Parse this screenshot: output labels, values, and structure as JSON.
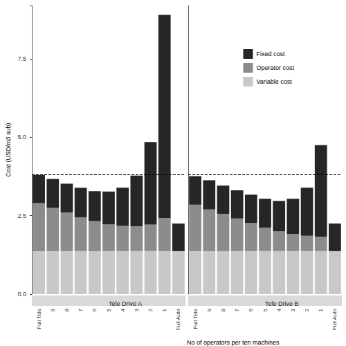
{
  "chart_data": {
    "type": "bar",
    "stacked": true,
    "y_label": "Cost (USD/m3 sub)",
    "x_label": "No of operators per ten machines",
    "categories": [
      "Full Tele",
      "9",
      "8",
      "7",
      "6",
      "5",
      "4",
      "3",
      "2",
      "1",
      "Full Auto"
    ],
    "ylim": [
      0,
      9.2
    ],
    "yticks": [
      {
        "value": 0,
        "label": "0.0"
      },
      2.5,
      {
        "value": 5,
        "label": "5.0"
      },
      7.5
    ],
    "hline": 3.82,
    "legend": "top-right",
    "panels": [
      {
        "title": "Tele Drive A",
        "series": [
          {
            "name": "Fixed cost",
            "color": "#262626",
            "values": [
              0.9,
              0.92,
              0.92,
              0.94,
              0.95,
              1.05,
              1.21,
              1.62,
              2.63,
              6.48,
              0.88
            ]
          },
          {
            "name": "Operator cost",
            "color": "#8c8c8c",
            "values": [
              1.53,
              1.38,
              1.23,
              1.08,
              0.96,
              0.85,
              0.81,
              0.79,
              0.85,
              1.05,
              0
            ]
          },
          {
            "name": "Variable cost",
            "color": "#c8c8c8",
            "values": [
              1.37,
              1.37,
              1.37,
              1.37,
              1.37,
              1.37,
              1.37,
              1.37,
              1.37,
              1.37,
              1.37
            ]
          }
        ]
      },
      {
        "title": "Tele Drive B",
        "series": [
          {
            "name": "Fixed cost",
            "color": "#262626",
            "values": [
              0.91,
              0.93,
              0.9,
              0.9,
              0.9,
              0.92,
              0.97,
              1.12,
              1.53,
              2.92,
              0.88
            ]
          },
          {
            "name": "Operator cost",
            "color": "#8c8c8c",
            "values": [
              1.48,
              1.33,
              1.19,
              1.04,
              0.9,
              0.75,
              0.63,
              0.55,
              0.49,
              0.46,
              0
            ]
          },
          {
            "name": "Variable cost",
            "color": "#c8c8c8",
            "values": [
              1.37,
              1.37,
              1.37,
              1.37,
              1.37,
              1.37,
              1.37,
              1.37,
              1.37,
              1.37,
              1.37
            ]
          }
        ]
      }
    ]
  }
}
